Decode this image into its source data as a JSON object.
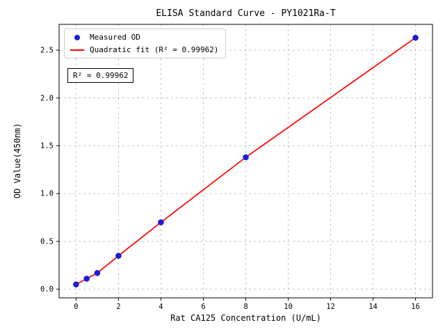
{
  "chart_data": {
    "type": "scatter",
    "title": "ELISA Standard Curve - PY1021Ra-T",
    "xlabel": "Rat CA125 Concentration (U/mL)",
    "ylabel": "OD Value(450nm)",
    "x": [
      0,
      0.5,
      1,
      2,
      4,
      8,
      16
    ],
    "series": [
      {
        "name": "Measured OD",
        "type": "scatter",
        "color": "#1a1ad9",
        "values": [
          0.05,
          0.11,
          0.17,
          0.35,
          0.7,
          1.38,
          2.63
        ]
      },
      {
        "name": "Quadratic fit (R² = 0.99962)",
        "type": "line",
        "color": "#ff0000",
        "values": [
          0.05,
          0.11,
          0.17,
          0.35,
          0.7,
          1.38,
          2.63
        ]
      }
    ],
    "annotation": "R² = 0.99962",
    "xlim": [
      -0.8,
      16.8
    ],
    "ylim": [
      -0.09,
      2.77
    ],
    "xticks": [
      0,
      2,
      4,
      6,
      8,
      10,
      12,
      14,
      16
    ],
    "yticks": [
      0.0,
      0.5,
      1.0,
      1.5,
      2.0,
      2.5
    ],
    "grid": true,
    "legend_position": "upper-left"
  }
}
